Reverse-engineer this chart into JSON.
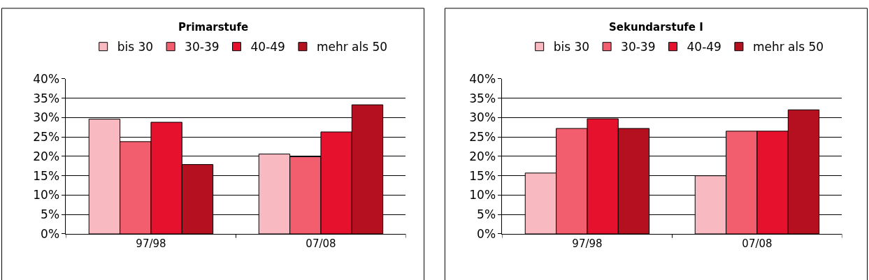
{
  "chart_data": [
    {
      "type": "bar",
      "title": "Primarstufe",
      "categories": [
        "97/98",
        "07/08"
      ],
      "series": [
        {
          "name": "bis 30",
          "color": "#f8b9c0",
          "values": [
            29.6,
            20.6
          ]
        },
        {
          "name": "30-39",
          "color": "#f25e6e",
          "values": [
            23.8,
            19.9
          ]
        },
        {
          "name": "40-49",
          "color": "#e5112d",
          "values": [
            28.8,
            26.3
          ]
        },
        {
          "name": "mehr als 50",
          "color": "#b51020",
          "values": [
            17.9,
            33.3
          ]
        }
      ],
      "ylim": [
        0,
        40
      ],
      "yticks": [
        {
          "value": 0,
          "label": "0%"
        },
        {
          "value": 5,
          "label": "5%"
        },
        {
          "value": 10,
          "label": "10%"
        },
        {
          "value": 15,
          "label": "15%"
        },
        {
          "value": 20,
          "label": "20%"
        },
        {
          "value": 25,
          "label": "25%"
        },
        {
          "value": 30,
          "label": "30%"
        },
        {
          "value": 35,
          "label": "35%"
        },
        {
          "value": 40,
          "label": "40%"
        }
      ],
      "grid": "y",
      "legend": "top"
    },
    {
      "type": "bar",
      "title": "Sekundarstufe I",
      "categories": [
        "97/98",
        "07/08"
      ],
      "series": [
        {
          "name": "bis 30",
          "color": "#f8b9c0",
          "values": [
            15.7,
            15.0
          ]
        },
        {
          "name": "30-39",
          "color": "#f25e6e",
          "values": [
            27.2,
            26.5
          ]
        },
        {
          "name": "40-49",
          "color": "#e5112d",
          "values": [
            29.7,
            26.5
          ]
        },
        {
          "name": "mehr als 50",
          "color": "#b51020",
          "values": [
            27.2,
            32.0
          ]
        }
      ],
      "ylim": [
        0,
        40
      ],
      "yticks": [
        {
          "value": 0,
          "label": "0%"
        },
        {
          "value": 5,
          "label": "5%"
        },
        {
          "value": 10,
          "label": "10%"
        },
        {
          "value": 15,
          "label": "15%"
        },
        {
          "value": 20,
          "label": "20%"
        },
        {
          "value": 25,
          "label": "25%"
        },
        {
          "value": 30,
          "label": "30%"
        },
        {
          "value": 35,
          "label": "35%"
        },
        {
          "value": 40,
          "label": "40%"
        }
      ],
      "grid": "y",
      "legend": "top"
    }
  ]
}
